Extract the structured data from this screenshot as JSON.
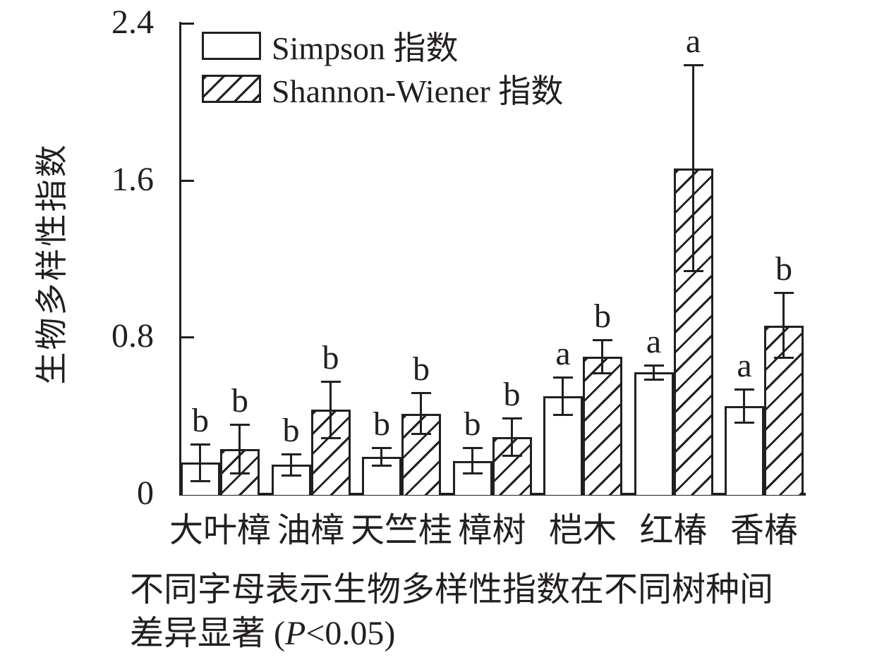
{
  "chart_data": {
    "type": "bar",
    "title": "",
    "xlabel": "",
    "ylabel": "生物多样性指数",
    "ylim": [
      0,
      2.4
    ],
    "yticks": [
      0,
      0.8,
      1.6,
      2.4
    ],
    "grid": false,
    "legend_position": "top-left",
    "categories": [
      "大叶樟",
      "油樟",
      "天竺桂",
      "樟树",
      "桤木",
      "红椿",
      "香椿"
    ],
    "series": [
      {
        "name": "Simpson 指数",
        "fill": "plain",
        "values": [
          0.16,
          0.15,
          0.19,
          0.17,
          0.5,
          0.62,
          0.45
        ],
        "errors": [
          0.1,
          0.06,
          0.05,
          0.07,
          0.1,
          0.04,
          0.09
        ],
        "letters": [
          "b",
          "b",
          "b",
          "b",
          "a",
          "a",
          "a"
        ]
      },
      {
        "name": "Shannon-Wiener 指数",
        "fill": "hatched",
        "values": [
          0.23,
          0.43,
          0.41,
          0.29,
          0.7,
          1.66,
          0.86
        ],
        "errors": [
          0.13,
          0.15,
          0.11,
          0.1,
          0.09,
          0.53,
          0.17
        ],
        "letters": [
          "b",
          "b",
          "b",
          "b",
          "b",
          "a",
          "b"
        ]
      }
    ]
  },
  "caption": {
    "line1": "不同字母表示生物多样性指数在不同树种间",
    "line2_prefix": "差异显著  (",
    "line2_p": "P",
    "line2_suffix": "<0.05)"
  },
  "colors": {
    "ink": "#231f20",
    "background": "#ffffff"
  }
}
